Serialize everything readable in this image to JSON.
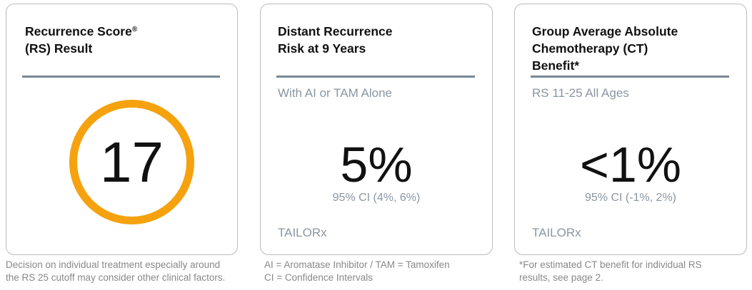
{
  "cards": [
    {
      "title_line1": "Recurrence Score",
      "title_mark": "®",
      "title_line2": "(RS) Result",
      "score": "17",
      "ring_color": "#F5A20E",
      "footnote_line1": "Decision on individual treatment especially around",
      "footnote_line2": "the RS 25 cutoff may consider other clinical factors."
    },
    {
      "title_line1": "Distant Recurrence",
      "title_line2": "Risk at 9 Years",
      "subtitle": "With AI or TAM Alone",
      "value": "5%",
      "ci": "95% CI (4%, 6%)",
      "source": "TAILORx",
      "footnote_line1": "AI = Aromatase Inhibitor / TAM = Tamoxifen",
      "footnote_line2": "CI = Confidence Intervals"
    },
    {
      "title_line1": "Group Average Absolute",
      "title_line2": "Chemotherapy (CT)",
      "title_line3": "Benefit*",
      "subtitle": "RS 11-25 All Ages",
      "value": "<1%",
      "ci": "95% CI (-1%, 2%)",
      "source": "TAILORx",
      "footnote_line1": "*For estimated CT benefit for individual RS",
      "footnote_line2": "results, see page 2."
    }
  ]
}
